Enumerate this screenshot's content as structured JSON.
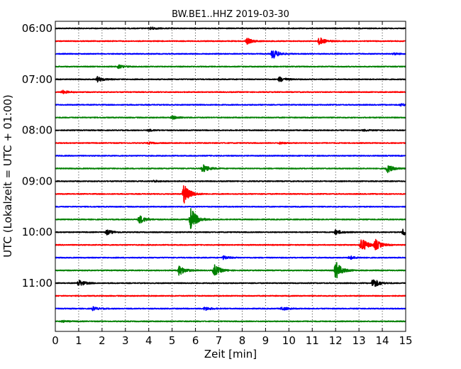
{
  "chart_data": {
    "type": "line",
    "subtype": "seismic-dayplot",
    "title": "BW.BE1..HHZ 2019-03-30",
    "xlabel": "Zeit  [min]",
    "ylabel": "UTC (Lokalzeit = UTC + 01:00)",
    "xlim": [
      0,
      15
    ],
    "x_ticks": [
      "0",
      "1",
      "2",
      "3",
      "4",
      "5",
      "6",
      "7",
      "8",
      "9",
      "10",
      "11",
      "12",
      "13",
      "14",
      "15"
    ],
    "y_ticks": [
      "06:00",
      "07:00",
      "08:00",
      "09:00",
      "10:00",
      "11:00"
    ],
    "grid": "vertical-dotted",
    "trace_interval_minutes": 15,
    "trace_colors": [
      "#000000",
      "#ff0000",
      "#0000ff",
      "#008000"
    ],
    "series": [
      {
        "start": "06:00",
        "events": [
          {
            "x": 4.1,
            "amp": 0.15
          }
        ]
      },
      {
        "start": "06:15",
        "events": [
          {
            "x": 8.2,
            "amp": 0.35
          },
          {
            "x": 11.3,
            "amp": 0.45
          }
        ]
      },
      {
        "start": "06:30",
        "events": [
          {
            "x": 9.3,
            "amp": 0.6
          },
          {
            "x": 14.5,
            "amp": 0.1
          }
        ]
      },
      {
        "start": "06:45",
        "events": [
          {
            "x": 2.7,
            "amp": 0.2
          }
        ]
      },
      {
        "start": "07:00",
        "events": [
          {
            "x": 1.8,
            "amp": 0.3
          },
          {
            "x": 9.6,
            "amp": 0.3
          }
        ]
      },
      {
        "start": "07:15",
        "events": [
          {
            "x": 0.3,
            "amp": 0.2
          }
        ]
      },
      {
        "start": "07:30",
        "events": [
          {
            "x": 14.8,
            "amp": 0.15
          }
        ]
      },
      {
        "start": "07:45",
        "events": [
          {
            "x": 5.0,
            "amp": 0.2
          }
        ]
      },
      {
        "start": "08:00",
        "events": [
          {
            "x": 4.0,
            "amp": 0.1
          },
          {
            "x": 13.2,
            "amp": 0.1
          }
        ]
      },
      {
        "start": "08:15",
        "events": [
          {
            "x": 4.0,
            "amp": 0.1
          },
          {
            "x": 9.6,
            "amp": 0.1
          }
        ]
      },
      {
        "start": "08:30",
        "events": []
      },
      {
        "start": "08:45",
        "events": [
          {
            "x": 6.3,
            "amp": 0.5
          },
          {
            "x": 14.2,
            "amp": 0.5
          }
        ]
      },
      {
        "start": "09:00",
        "events": [
          {
            "x": 4.2,
            "amp": 0.1
          }
        ]
      },
      {
        "start": "09:15",
        "events": [
          {
            "x": 5.5,
            "amp": 1.2
          }
        ]
      },
      {
        "start": "09:30",
        "events": []
      },
      {
        "start": "09:45",
        "events": [
          {
            "x": 3.6,
            "amp": 0.5
          },
          {
            "x": 5.8,
            "amp": 1.4
          }
        ]
      },
      {
        "start": "10:00",
        "events": [
          {
            "x": 2.2,
            "amp": 0.3
          },
          {
            "x": 12.0,
            "amp": 0.3
          },
          {
            "x": 14.9,
            "amp": 0.4
          }
        ]
      },
      {
        "start": "10:15",
        "events": [
          {
            "x": 13.1,
            "amp": 0.9
          },
          {
            "x": 13.7,
            "amp": 0.6
          }
        ]
      },
      {
        "start": "10:30",
        "events": [
          {
            "x": 7.2,
            "amp": 0.2
          },
          {
            "x": 12.6,
            "amp": 0.2
          }
        ]
      },
      {
        "start": "10:45",
        "events": [
          {
            "x": 5.3,
            "amp": 0.6
          },
          {
            "x": 6.8,
            "amp": 0.7
          },
          {
            "x": 12.0,
            "amp": 1.1
          }
        ]
      },
      {
        "start": "11:00",
        "events": [
          {
            "x": 1.0,
            "amp": 0.4
          },
          {
            "x": 13.6,
            "amp": 0.6
          }
        ]
      },
      {
        "start": "11:15",
        "events": []
      },
      {
        "start": "11:30",
        "events": [
          {
            "x": 1.6,
            "amp": 0.2
          },
          {
            "x": 6.4,
            "amp": 0.2
          },
          {
            "x": 9.7,
            "amp": 0.2
          }
        ]
      },
      {
        "start": "11:45",
        "events": [
          {
            "x": 0.3,
            "amp": 0.1
          }
        ]
      }
    ]
  }
}
